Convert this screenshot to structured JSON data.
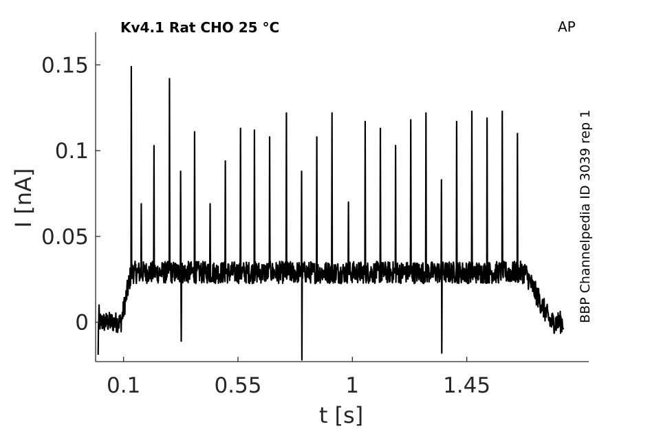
{
  "chart_data": {
    "type": "line",
    "title": "Kv4.1  Rat  CHO  25 °C",
    "protocol_tag": "AP",
    "side_label": "BBP Channelpedia ID 3039 rep 1",
    "xlabel": "t [s]",
    "ylabel": "I [nA]",
    "xlim": [
      -0.01,
      1.93
    ],
    "ylim": [
      -0.023,
      0.169
    ],
    "xticks": [
      0.1,
      0.55,
      1,
      1.45
    ],
    "xtick_labels": [
      "0.1",
      "0.55",
      "1",
      "1.45"
    ],
    "yticks": [
      0,
      0.05,
      0.1,
      0.15
    ],
    "ytick_labels": [
      "0",
      "0.05",
      "0.1",
      "0.15"
    ],
    "grid": false,
    "baseline_before": 0.0,
    "baseline_during": 0.029,
    "onset_time": 0.1,
    "offset_time": 1.68,
    "end_time": 1.83,
    "spike_times": [
      0.13,
      0.17,
      0.22,
      0.28,
      0.325,
      0.38,
      0.44,
      0.5,
      0.56,
      0.615,
      0.675,
      0.74,
      0.8,
      0.86,
      0.92,
      0.985,
      1.05,
      1.11,
      1.17,
      1.23,
      1.29,
      1.35,
      1.41,
      1.47,
      1.53,
      1.59,
      1.65
    ],
    "spike_peaks": [
      0.149,
      0.069,
      0.103,
      0.142,
      0.088,
      0.111,
      0.069,
      0.094,
      0.113,
      0.112,
      0.108,
      0.122,
      0.088,
      0.108,
      0.122,
      0.07,
      0.117,
      0.113,
      0.103,
      0.118,
      0.122,
      0.083,
      0.117,
      0.123,
      0.119,
      0.123,
      0.11
    ],
    "negative_spike_times": [
      0.325,
      0.8,
      1.35
    ],
    "negative_spike_values": [
      -0.011,
      -0.022,
      -0.018
    ]
  }
}
